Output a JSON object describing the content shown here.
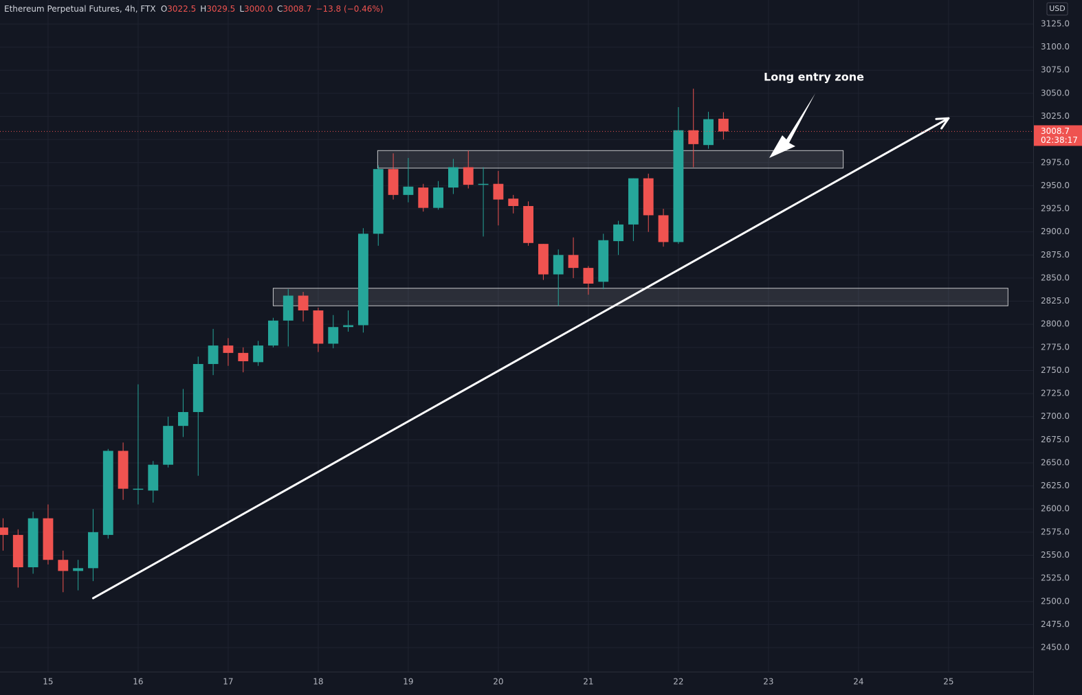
{
  "chart_data": {
    "type": "candlestick",
    "title": "Ethereum Perpetual Futures, 4h, FTX",
    "ohlc_header": [
      {
        "key": "O",
        "value": "3022.5"
      },
      {
        "key": "H",
        "value": "3029.5"
      },
      {
        "key": "L",
        "value": "3000.0"
      },
      {
        "key": "C",
        "value": "3008.7"
      }
    ],
    "change": "−13.8 (−0.46%)",
    "currency": "USD",
    "last_price": {
      "value": 3008.7,
      "label": "3008.7"
    },
    "countdown": "02:38:17",
    "up_color": "#26a69a",
    "down_color": "#ef5350",
    "x": [
      14.5,
      14.6667,
      14.8333,
      15,
      15.1667,
      15.3333,
      15.5,
      15.6667,
      15.8333,
      16,
      16.1667,
      16.3333,
      16.5,
      16.6667,
      16.8333,
      17,
      17.1667,
      17.3333,
      17.5,
      17.6667,
      17.8333,
      18,
      18.1667,
      18.3333,
      18.5,
      18.6667,
      18.8333,
      19,
      19.1667,
      19.3333,
      19.5,
      19.6667,
      19.8333,
      20,
      20.1667,
      20.3333,
      20.5,
      20.6667,
      20.8333,
      21,
      21.1667,
      21.3333,
      21.5,
      21.6667,
      21.8333,
      22,
      22.1667,
      22.3333,
      22.5
    ],
    "open": [
      2580,
      2572,
      2537,
      2590,
      2545,
      2533,
      2536,
      2572,
      2663,
      2621,
      2620,
      2648,
      2690,
      2705,
      2757,
      2777,
      2769,
      2759,
      2777,
      2804,
      2831,
      2815,
      2779,
      2797,
      2799,
      2898,
      2968,
      2940,
      2948,
      2926,
      2948,
      2970,
      2952,
      2952,
      2936,
      2928,
      2887,
      2854,
      2875,
      2861,
      2846,
      2890,
      2908,
      2958,
      2918,
      2889,
      3010,
      2994,
      3022.5
    ],
    "high": [
      2590,
      2578,
      2597,
      2605,
      2555,
      2545,
      2600,
      2665,
      2672,
      2735,
      2652,
      2700,
      2730,
      2765,
      2795,
      2785,
      2775,
      2782,
      2807,
      2838,
      2835,
      2818,
      2810,
      2815,
      2904,
      2972,
      2985,
      2980,
      2952,
      2955,
      2979,
      2988,
      2970,
      2966,
      2940,
      2933,
      2887,
      2881,
      2894,
      2863,
      2898,
      2912,
      2958,
      2963,
      2925,
      3035,
      3055,
      3030,
      3029.5
    ],
    "low": [
      2555,
      2515,
      2530,
      2540,
      2510,
      2512,
      2522,
      2568,
      2610,
      2605,
      2607,
      2645,
      2678,
      2636,
      2745,
      2755,
      2748,
      2755,
      2775,
      2776,
      2803,
      2770,
      2774,
      2792,
      2791,
      2885,
      2935,
      2932,
      2922,
      2924,
      2941,
      2947,
      2895,
      2907,
      2920,
      2885,
      2848,
      2820,
      2850,
      2832,
      2838,
      2875,
      2890,
      2900,
      2884,
      2887,
      2970,
      2990,
      3000
    ],
    "close": [
      2572,
      2537,
      2590,
      2545,
      2533,
      2536,
      2575,
      2663,
      2622,
      2622,
      2648,
      2690,
      2705,
      2757,
      2777,
      2769,
      2760,
      2777,
      2804,
      2831,
      2815,
      2779,
      2797,
      2799,
      2898,
      2968,
      2940,
      2949,
      2926,
      2948,
      2970,
      2951,
      2952,
      2935,
      2928,
      2888,
      2854,
      2875,
      2861,
      2844,
      2891,
      2908,
      2958,
      2918,
      2889,
      3010,
      2995,
      3022,
      3008.7
    ],
    "xlim": [
      14.466,
      25.94
    ],
    "ylim": [
      2424,
      3151
    ],
    "xticks": [
      15,
      16,
      17,
      18,
      19,
      20,
      21,
      22,
      23,
      24,
      25
    ],
    "yticks": [
      {
        "value": 2450,
        "label": "2450.0"
      },
      {
        "value": 2475,
        "label": "2475.0"
      },
      {
        "value": 2500,
        "label": "2500.0"
      },
      {
        "value": 2525,
        "label": "2525.0"
      },
      {
        "value": 2550,
        "label": "2550.0"
      },
      {
        "value": 2575,
        "label": "2575.0"
      },
      {
        "value": 2600,
        "label": "2600.0"
      },
      {
        "value": 2625,
        "label": "2625.0"
      },
      {
        "value": 2650,
        "label": "2650.0"
      },
      {
        "value": 2675,
        "label": "2675.0"
      },
      {
        "value": 2700,
        "label": "2700.0"
      },
      {
        "value": 2725,
        "label": "2725.0"
      },
      {
        "value": 2750,
        "label": "2750.0"
      },
      {
        "value": 2775,
        "label": "2775.0"
      },
      {
        "value": 2800,
        "label": "2800.0"
      },
      {
        "value": 2825,
        "label": "2825.0"
      },
      {
        "value": 2850,
        "label": "2850.0"
      },
      {
        "value": 2875,
        "label": "2875.0"
      },
      {
        "value": 2900,
        "label": "2900.0"
      },
      {
        "value": 2925,
        "label": "2925.0"
      },
      {
        "value": 2950,
        "label": "2950.0"
      },
      {
        "value": 2975,
        "label": "2975.0"
      },
      {
        "value": 3000,
        "label": "3000.0"
      },
      {
        "value": 3025,
        "label": "3025.0"
      },
      {
        "value": 3050,
        "label": "3050.0"
      },
      {
        "value": 3075,
        "label": "3075.0"
      },
      {
        "value": 3100,
        "label": "3100.0"
      },
      {
        "value": 3125,
        "label": "3125.0"
      }
    ],
    "grid": true,
    "zones": [
      {
        "x": [
          18.66,
          23.83
        ],
        "y": [
          2969,
          2988
        ]
      },
      {
        "x": [
          17.5,
          25.66
        ],
        "y": [
          2820,
          2839
        ]
      }
    ],
    "trendline": {
      "x": [
        15.5,
        25.0
      ],
      "y": [
        2503.5,
        3023
      ]
    },
    "annotation": "Long entry zone"
  }
}
